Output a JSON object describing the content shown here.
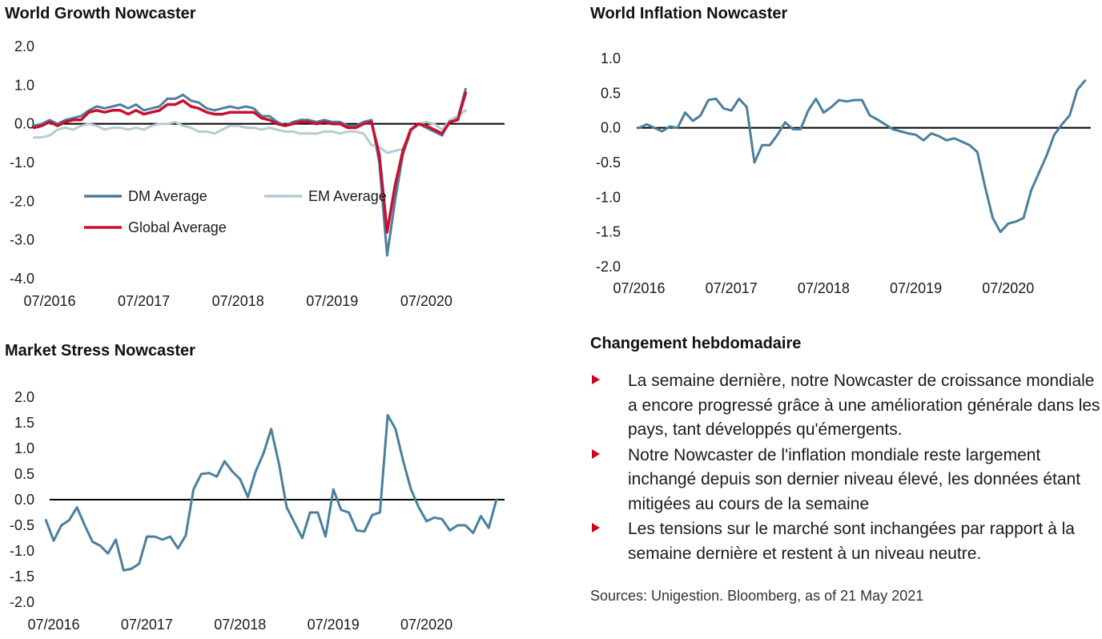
{
  "colors": {
    "dm": "#4a7f9e",
    "em": "#b8cad4",
    "global": "#c8102e",
    "accent": "#d0021b",
    "zero_line": "#000000"
  },
  "chart_data": [
    {
      "type": "line",
      "title": "World Growth Nowcaster",
      "xlabel": "",
      "ylabel": "",
      "ylim": [
        -4.0,
        2.0
      ],
      "yticks": [
        "2.0",
        "1.0",
        "0.0",
        "-1.0",
        "-2.0",
        "-3.0",
        "-4.0"
      ],
      "xticks": [
        "07/2016",
        "07/2017",
        "07/2018",
        "07/2019",
        "07/2020"
      ],
      "x_start": "2016-05",
      "step_months": 1,
      "legend_position": "lower-left",
      "series": [
        {
          "name": "DM Average",
          "color_key": "dm",
          "values": [
            -0.05,
            0.0,
            0.1,
            0.0,
            0.1,
            0.15,
            0.2,
            0.35,
            0.45,
            0.4,
            0.45,
            0.5,
            0.4,
            0.5,
            0.35,
            0.4,
            0.45,
            0.65,
            0.65,
            0.75,
            0.6,
            0.55,
            0.4,
            0.35,
            0.4,
            0.45,
            0.4,
            0.45,
            0.4,
            0.2,
            0.2,
            0.05,
            -0.05,
            0.05,
            0.1,
            0.1,
            0.05,
            0.1,
            0.05,
            0.05,
            -0.05,
            -0.05,
            0.05,
            0.1,
            -1.0,
            -3.4,
            -2.0,
            -0.8,
            -0.2,
            0.0,
            -0.1,
            -0.2,
            -0.3,
            0.1,
            0.15,
            0.9
          ]
        },
        {
          "name": "EM Average",
          "color_key": "em",
          "values": [
            -0.35,
            -0.35,
            -0.3,
            -0.15,
            -0.1,
            -0.15,
            -0.05,
            0.0,
            -0.05,
            -0.15,
            -0.1,
            -0.1,
            -0.15,
            -0.1,
            -0.15,
            -0.05,
            0.0,
            0.0,
            0.05,
            -0.05,
            -0.1,
            -0.2,
            -0.2,
            -0.25,
            -0.15,
            -0.05,
            -0.05,
            -0.1,
            -0.1,
            -0.15,
            -0.1,
            -0.15,
            -0.2,
            -0.2,
            -0.25,
            -0.25,
            -0.25,
            -0.2,
            -0.2,
            -0.25,
            -0.2,
            -0.2,
            -0.25,
            -0.55,
            -0.6,
            -0.75,
            -0.7,
            -0.65,
            -0.2,
            0.0,
            0.05,
            0.0,
            -0.15,
            0.1,
            0.2,
            0.35
          ]
        },
        {
          "name": "Global Average",
          "color_key": "global",
          "values": [
            -0.1,
            -0.05,
            0.05,
            -0.05,
            0.05,
            0.1,
            0.1,
            0.3,
            0.35,
            0.3,
            0.35,
            0.35,
            0.25,
            0.35,
            0.25,
            0.3,
            0.35,
            0.5,
            0.5,
            0.6,
            0.45,
            0.4,
            0.3,
            0.25,
            0.25,
            0.3,
            0.3,
            0.3,
            0.3,
            0.15,
            0.1,
            0.0,
            -0.05,
            0.0,
            0.05,
            0.05,
            0.0,
            0.05,
            0.0,
            0.0,
            -0.1,
            -0.1,
            0.0,
            0.05,
            -0.8,
            -2.8,
            -1.6,
            -0.7,
            -0.15,
            0.0,
            -0.05,
            -0.15,
            -0.25,
            0.05,
            0.1,
            0.8
          ]
        }
      ]
    },
    {
      "type": "line",
      "title": "World Inflation Nowcaster",
      "xlabel": "",
      "ylabel": "",
      "ylim": [
        -2.0,
        1.0
      ],
      "yticks": [
        "1.0",
        "0.5",
        "0.0",
        "-0.5",
        "-1.0",
        "-1.5",
        "-2.0"
      ],
      "xticks": [
        "07/2016",
        "07/2017",
        "07/2018",
        "07/2019",
        "07/2020"
      ],
      "x_start": "2016-07",
      "step_months": 1,
      "series": [
        {
          "name": "",
          "color_key": "dm",
          "values": [
            0.0,
            0.05,
            0.0,
            -0.05,
            0.02,
            0.0,
            0.22,
            0.1,
            0.18,
            0.4,
            0.42,
            0.28,
            0.25,
            0.42,
            0.3,
            -0.5,
            -0.25,
            -0.25,
            -0.1,
            0.08,
            -0.02,
            -0.02,
            0.25,
            0.42,
            0.22,
            0.3,
            0.4,
            0.38,
            0.4,
            0.4,
            0.18,
            0.12,
            0.05,
            -0.02,
            -0.05,
            -0.08,
            -0.1,
            -0.18,
            -0.08,
            -0.12,
            -0.18,
            -0.15,
            -0.2,
            -0.25,
            -0.35,
            -0.85,
            -1.3,
            -1.5,
            -1.38,
            -1.35,
            -1.3,
            -0.9,
            -0.65,
            -0.4,
            -0.1,
            0.05,
            0.18,
            0.55,
            0.68
          ]
        }
      ]
    },
    {
      "type": "line",
      "title": "Market Stress Nowcaster",
      "xlabel": "",
      "ylabel": "",
      "ylim": [
        -2.0,
        2.0
      ],
      "yticks": [
        "2.0",
        "1.5",
        "1.0",
        "0.5",
        "0.0",
        "-0.5",
        "-1.0",
        "-1.5",
        "-2.0"
      ],
      "xticks": [
        "07/2016",
        "07/2017",
        "07/2018",
        "07/2019",
        "07/2020"
      ],
      "x_start": "2016-06",
      "step_months": 1,
      "series": [
        {
          "name": "",
          "color_key": "dm",
          "values": [
            -0.4,
            -0.8,
            -0.5,
            -0.4,
            -0.15,
            -0.5,
            -0.82,
            -0.9,
            -1.05,
            -0.78,
            -1.38,
            -1.35,
            -1.25,
            -0.72,
            -0.72,
            -0.78,
            -0.72,
            -0.95,
            -0.7,
            0.2,
            0.5,
            0.52,
            0.45,
            0.75,
            0.55,
            0.4,
            0.05,
            0.55,
            0.9,
            1.38,
            0.7,
            -0.15,
            -0.45,
            -0.75,
            -0.25,
            -0.25,
            -0.72,
            0.2,
            -0.2,
            -0.25,
            -0.6,
            -0.62,
            -0.3,
            -0.25,
            1.65,
            1.38,
            0.75,
            0.2,
            -0.15,
            -0.42,
            -0.35,
            -0.38,
            -0.6,
            -0.5,
            -0.5,
            -0.65,
            -0.32,
            -0.55,
            0.0
          ]
        }
      ]
    }
  ],
  "commentary": {
    "title": "Changement hebdomadaire",
    "bullets": [
      "La semaine dernière, notre Nowcaster de croissance mondiale a encore progressé grâce à une amélioration générale dans les pays, tant développés qu'émergents.",
      "Notre Nowcaster de l'inflation mondiale reste largement inchangé depuis son dernier niveau élevé, les données étant mitigées au cours de la semaine",
      "Les tensions sur le marché sont inchangées par rapport à la semaine dernière et restent à un niveau neutre."
    ]
  },
  "sources": "Sources: Unigestion. Bloomberg, as of 21 May 2021"
}
